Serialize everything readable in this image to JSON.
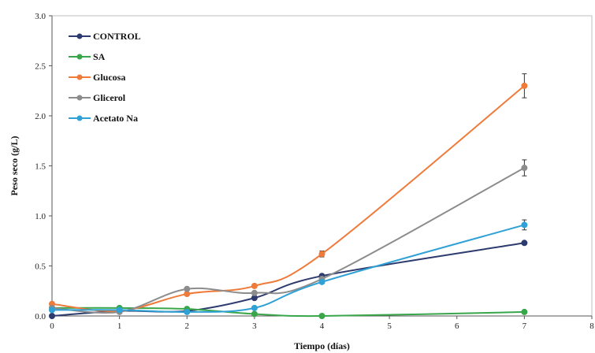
{
  "chart_data": {
    "type": "line",
    "xlabel": "Tiempo (días)",
    "ylabel": "Peso seco (g/L)",
    "xlim": [
      0,
      8
    ],
    "ylim": [
      0,
      3.0
    ],
    "x_ticks": [
      "0",
      "1",
      "2",
      "3",
      "4",
      "5",
      "6",
      "7",
      "8"
    ],
    "y_ticks": [
      "0.0",
      "0.5",
      "1.0",
      "1.5",
      "2.0",
      "2.5",
      "3.0"
    ],
    "grid": false,
    "legend_position": "top-left",
    "series": [
      {
        "name": "CONTROL",
        "color": "#2e3b6e",
        "x": [
          0,
          1,
          2,
          3,
          4,
          7
        ],
        "y": [
          0.0,
          0.05,
          0.05,
          0.18,
          0.4,
          0.73
        ],
        "err": [
          0,
          0,
          0,
          0,
          0.01,
          0.01
        ]
      },
      {
        "name": "SA",
        "color": "#3aa64a",
        "x": [
          0,
          1,
          2,
          3,
          4,
          7
        ],
        "y": [
          0.08,
          0.08,
          0.07,
          0.02,
          0.0,
          0.04
        ],
        "err": [
          0,
          0,
          0,
          0,
          0,
          0
        ]
      },
      {
        "name": "Glucosa",
        "color": "#ef7a3a",
        "x": [
          0,
          1,
          2,
          3,
          4,
          7
        ],
        "y": [
          0.12,
          0.05,
          0.22,
          0.3,
          0.62,
          2.3
        ],
        "err": [
          0,
          0,
          0,
          0.01,
          0.03,
          0.12
        ]
      },
      {
        "name": "Glicerol",
        "color": "#8c8c8c",
        "x": [
          0,
          1,
          2,
          3,
          4,
          7
        ],
        "y": [
          0.08,
          0.04,
          0.27,
          0.23,
          0.37,
          1.48
        ],
        "err": [
          0,
          0,
          0,
          0,
          0.01,
          0.08
        ]
      },
      {
        "name": "Acetato Na",
        "color": "#2fa1d6",
        "x": [
          0,
          1,
          2,
          3,
          4,
          7
        ],
        "y": [
          0.06,
          0.06,
          0.04,
          0.08,
          0.34,
          0.91
        ],
        "err": [
          0,
          0,
          0,
          0,
          0.01,
          0.05
        ]
      }
    ]
  }
}
